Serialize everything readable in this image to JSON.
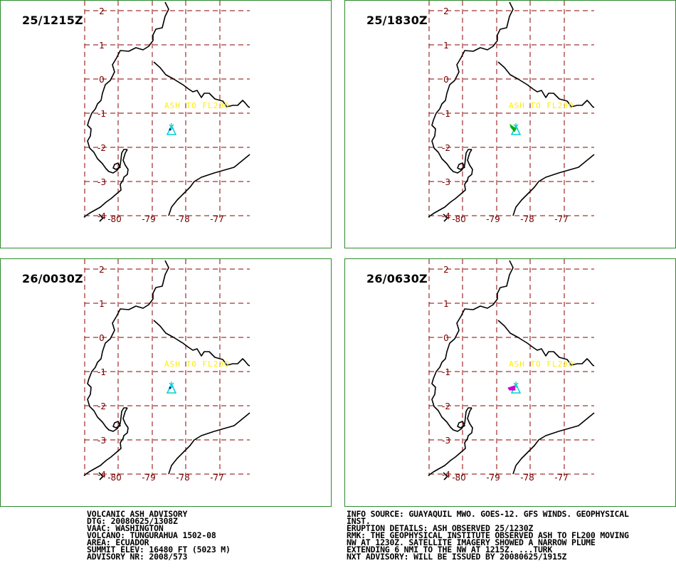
{
  "panels": [
    {
      "time": "25/1215Z",
      "ash_label": "ASH TO FL200",
      "plume": "none"
    },
    {
      "time": "25/1830Z",
      "ash_label": "ASH TO FL200",
      "plume": "green"
    },
    {
      "time": "26/0030Z",
      "ash_label": "ASH TO FL200",
      "plume": "none"
    },
    {
      "time": "26/0630Z",
      "ash_label": "ASH TO FL200",
      "plume": "magenta"
    }
  ],
  "lat_labels": [
    "2",
    "1",
    "0",
    "-1",
    "-2",
    "-3",
    "-4"
  ],
  "lon_labels": [
    "-80",
    "-79",
    "-78",
    "-77"
  ],
  "advisory_left": [
    "VOLCANIC ASH ADVISORY",
    "DTG: 20080625/1308Z",
    "VAAC: WASHINGTON",
    "VOLCANO: TUNGURAHUA 1502-08",
    "AREA: ECUADOR",
    "SUMMIT ELEV: 16480 FT (5023 M)",
    "ADVISORY NR: 2008/573"
  ],
  "advisory_right": [
    "INFO SOURCE: GUAYAQUIL MWO. GOES-12. GFS WINDS. GEOPHYSICAL",
    "INST.",
    "ERUPTION DETAILS: ASH OBSERVED 25/1230Z",
    "RMK: THE GEOPHYSICAL INSTITUTE OBSERVED ASH TO FL200 MOVING",
    "NW AT 1230Z. SATELLITE IMAGERY SHOWED A NARROW PLUME",
    "EXTENDING 6 NMI TO THE NW AT 1215Z. ...TURK",
    "NXT ADVISORY: WILL BE ISSUED BY 20080625/1915Z"
  ],
  "colors": {
    "panel_border": "#2e8b2e",
    "grid": "#8b0000",
    "ash_text": "#ffee00",
    "volcano": "#00d0d0",
    "plume_green": "#00b000",
    "plume_magenta": "#d000d0"
  }
}
